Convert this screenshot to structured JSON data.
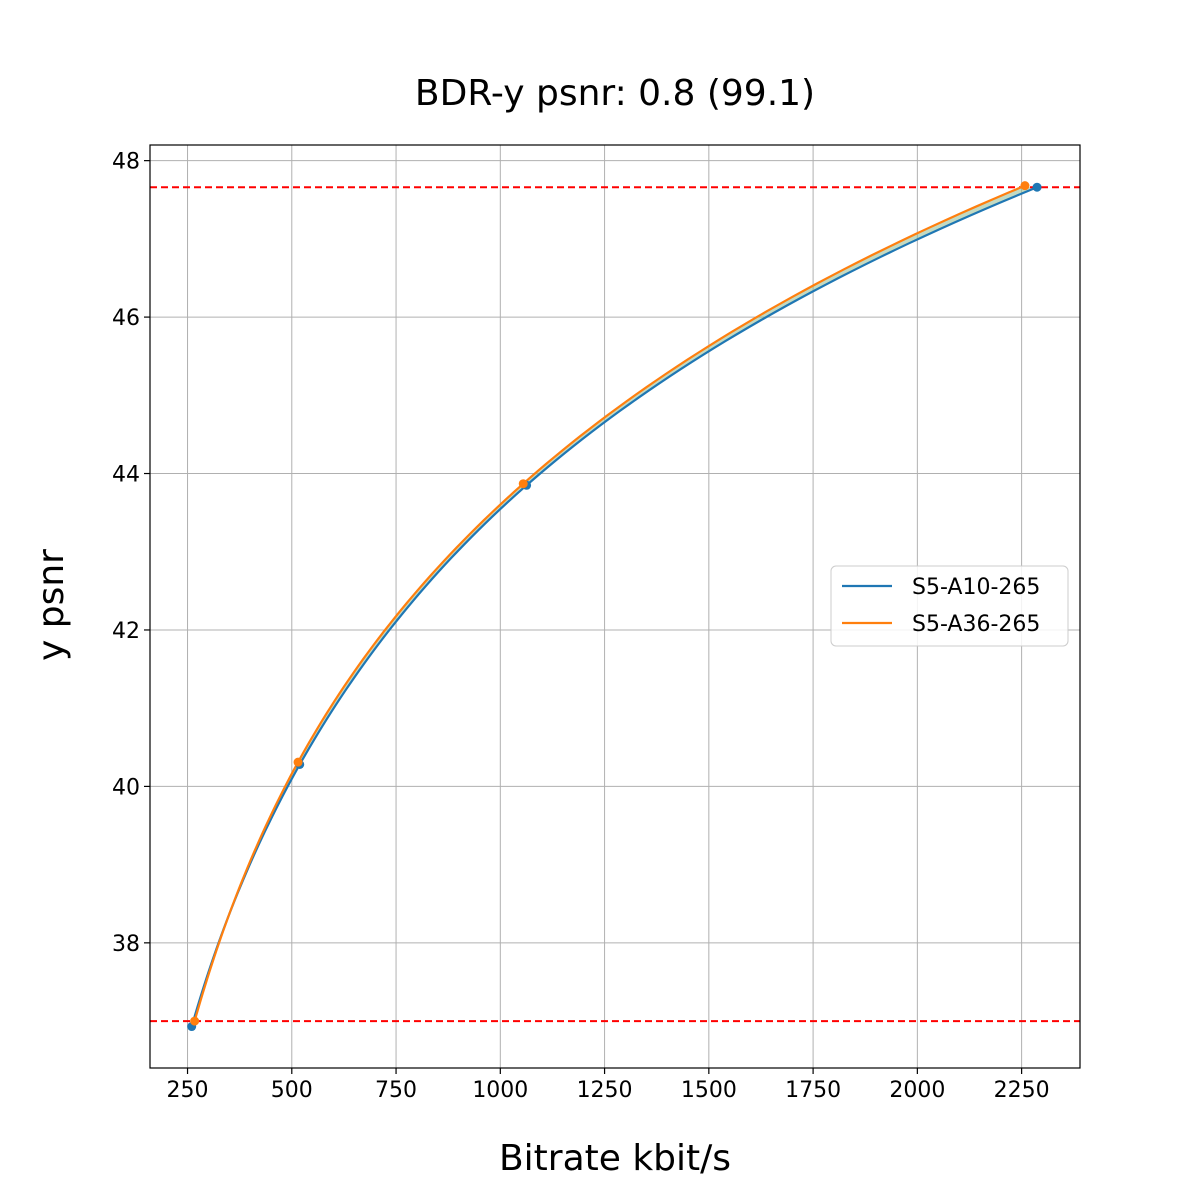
{
  "chart_data": {
    "type": "line",
    "title": "BDR-y psnr: 0.8 (99.1)",
    "xlabel": "Bitrate kbit/s",
    "ylabel": "y psnr",
    "xlim": [
      160,
      2390
    ],
    "ylim": [
      36.4,
      48.2
    ],
    "xticks": [
      250,
      500,
      750,
      1000,
      1250,
      1500,
      1750,
      2000,
      2250
    ],
    "yticks": [
      38,
      40,
      42,
      44,
      46,
      48
    ],
    "grid": true,
    "legend_position": "center-right",
    "series": [
      {
        "name": "S5-A10-265",
        "color": "#1f77b4",
        "points": [
          [
            260,
            36.93
          ],
          [
            519,
            40.28
          ],
          [
            1063,
            43.85
          ],
          [
            2287,
            47.66
          ]
        ]
      },
      {
        "name": "S5-A36-265",
        "color": "#ff7f0e",
        "points": [
          [
            267,
            37.0
          ],
          [
            515,
            40.31
          ],
          [
            1055,
            43.87
          ],
          [
            2258,
            47.68
          ]
        ]
      }
    ],
    "reference_lines": [
      {
        "axis": "y",
        "value": 47.66,
        "color": "#ff0000",
        "style": "dashed"
      },
      {
        "axis": "y",
        "value": 37.0,
        "color": "#ff0000",
        "style": "dashed"
      }
    ],
    "fill_between_color": "#8fbc8f"
  }
}
